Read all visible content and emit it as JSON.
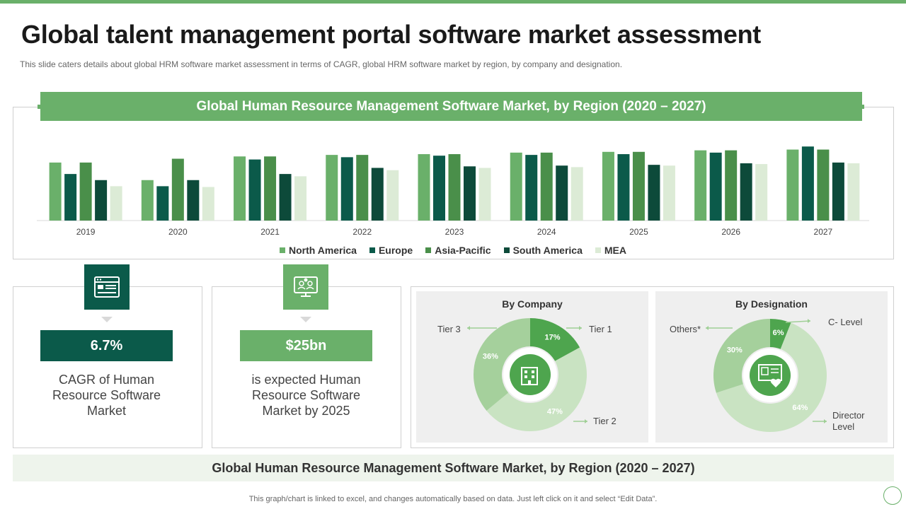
{
  "page": {
    "title": "Global talent management portal software market assessment",
    "subtitle": "This slide caters details about global HRM software market assessment in terms of CAGR, global HRM software market by region, by company and designation.",
    "footer": "This graph/chart is linked to excel,  and changes automatically based on data. Just left click on it and select “Edit Data”."
  },
  "colors": {
    "accent": "#6ab06a",
    "dark_teal": "#0b5a4a",
    "north_america": "#6ab06a",
    "europe": "#0b5a4a",
    "asia_pacific": "#4a8f4a",
    "south_america": "#0d4a3a",
    "mea": "#dcebd6"
  },
  "chart_data": [
    {
      "type": "bar",
      "title": "Global Human Resource Management Software Market, by Region (2020 – 2027)",
      "categories": [
        "2019",
        "2020",
        "2021",
        "2022",
        "2023",
        "2024",
        "2025",
        "2026",
        "2027"
      ],
      "series": [
        {
          "name": "North America",
          "color": "#6ab06a",
          "values": [
            76,
            53,
            84,
            86,
            87,
            89,
            90,
            92,
            93
          ]
        },
        {
          "name": "Europe",
          "color": "#0b5a4a",
          "values": [
            61,
            45,
            80,
            83,
            85,
            86,
            87,
            89,
            97
          ]
        },
        {
          "name": "Asia-Pacific",
          "color": "#4a8f4a",
          "values": [
            76,
            81,
            84,
            86,
            87,
            89,
            90,
            92,
            93
          ]
        },
        {
          "name": "South America",
          "color": "#0d4a3a",
          "values": [
            53,
            53,
            61,
            69,
            71,
            72,
            73,
            75,
            76
          ]
        },
        {
          "name": "MEA",
          "color": "#dcebd6",
          "values": [
            45,
            44,
            58,
            66,
            69,
            70,
            72,
            74,
            75
          ]
        }
      ],
      "xlabel": "",
      "ylabel": "",
      "ylim": [
        0,
        100
      ],
      "grid": false,
      "legend_position": "bottom"
    },
    {
      "type": "pie",
      "title": "By Company",
      "categories": [
        "Tier 1",
        "Tier 2",
        "Tier 3"
      ],
      "values": [
        17,
        47,
        36
      ],
      "value_labels": [
        "17%",
        "47%",
        "36%"
      ],
      "colors": [
        "#4ea54e",
        "#c9e3c2",
        "#a5d09c"
      ]
    },
    {
      "type": "pie",
      "title": "By Designation",
      "categories": [
        "C- Level",
        "Director Level",
        "Others*"
      ],
      "values": [
        6,
        64,
        30
      ],
      "value_labels": [
        "6%",
        "64%",
        "30%"
      ],
      "colors": [
        "#4ea54e",
        "#c9e3c2",
        "#a5d09c"
      ]
    }
  ],
  "stats": [
    {
      "value": "6.7%",
      "description": "CAGR of Human Resource Software Market"
    },
    {
      "value": "$25bn",
      "description": "is expected Human Resource Software Market by 2025"
    }
  ],
  "bottom_banner": "Global Human Resource Management Software Market, by Region (2020 – 2027)"
}
